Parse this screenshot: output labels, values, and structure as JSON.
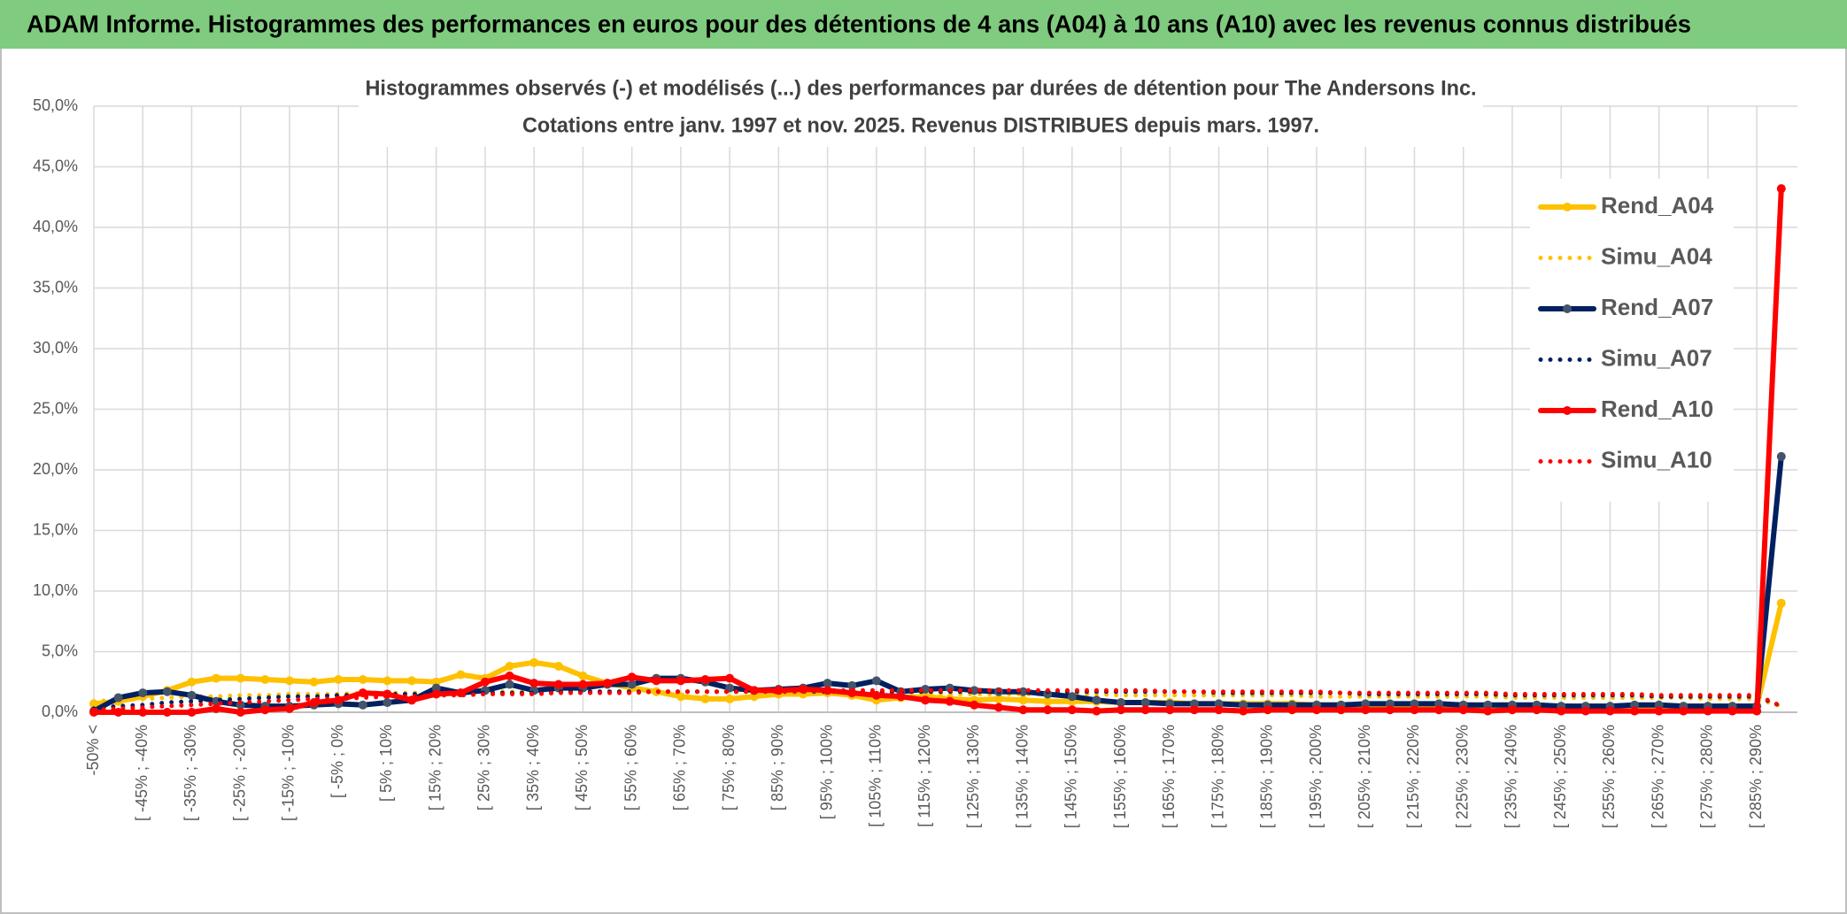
{
  "header": {
    "title": "ADAM Informe. Histogrammes des performances en euros pour des détentions de 4 ans (A04) à 10 ans (A10) avec les revenus connus distribués"
  },
  "chart_data": {
    "type": "line",
    "title": "Histogrammes observés (-) et modélisés (...) des performances par durées de détention pour The Andersons Inc.",
    "subtitle": "Cotations entre janv. 1997 et nov. 2025. Revenus DISTRIBUES depuis mars. 1997.",
    "categories": [
      "-50% <",
      null,
      "[ -45% ; -40%",
      null,
      "[ -35% ; -30%",
      null,
      "[ -25% ; -20%",
      null,
      "[ -15% ; -10%",
      null,
      "[ -5% ; 0%",
      null,
      "[ 5% ; 10%",
      null,
      "[ 15% ; 20%",
      null,
      "[ 25% ; 30%",
      null,
      "[ 35% ; 40%",
      null,
      "[ 45% ; 50%",
      null,
      "[ 55% ; 60%",
      null,
      "[ 65% ; 70%",
      null,
      "[ 75% ; 80%",
      null,
      "[ 85% ; 90%",
      null,
      "[ 95% ; 100%",
      null,
      "[ 105% ; 110%",
      null,
      "[ 115% ; 120%",
      null,
      "[ 125% ; 130%",
      null,
      "[ 135% ; 140%",
      null,
      "[ 145% ; 150%",
      null,
      "[ 155% ; 160%",
      null,
      "[ 165% ; 170%",
      null,
      "[ 175% ; 180%",
      null,
      "[ 185% ; 190%",
      null,
      "[ 195% ; 200%",
      null,
      "[ 205% ; 210%",
      null,
      "[ 215% ; 220%",
      null,
      "[ 225% ; 230%",
      null,
      "[ 235% ; 240%",
      null,
      "[ 245% ; 250%",
      null,
      "[ 255% ; 260%",
      null,
      "[ 265% ; 270%",
      null,
      "[ 275% ; 280%",
      null,
      "[ 285% ; 290%",
      null
    ],
    "series": [
      {
        "name": "Rend_A04",
        "color": "#ffc000",
        "style": "solid",
        "values": [
          0.7,
          0.9,
          1.3,
          1.8,
          2.5,
          2.8,
          2.8,
          2.7,
          2.6,
          2.5,
          2.7,
          2.7,
          2.6,
          2.6,
          2.5,
          3.1,
          2.8,
          3.8,
          4.1,
          3.8,
          3.0,
          2.4,
          2.0,
          1.7,
          1.3,
          1.1,
          1.1,
          1.3,
          1.5,
          1.5,
          1.6,
          1.4,
          1.0,
          1.2,
          1.3,
          1.1,
          1.0,
          1.1,
          1.0,
          0.9,
          0.9,
          0.9,
          0.8,
          0.8,
          0.8,
          0.7,
          0.7,
          0.7,
          0.7,
          0.7,
          0.6,
          0.6,
          0.6,
          0.6,
          0.6,
          0.6,
          0.6,
          0.5,
          0.5,
          0.5,
          0.5,
          0.5,
          0.5,
          0.5,
          0.5,
          0.5,
          0.5,
          0.5,
          0.5,
          9.0
        ]
      },
      {
        "name": "Simu_A04",
        "color": "#ffc000",
        "style": "dotted",
        "values": [
          0.9,
          1.0,
          1.1,
          1.2,
          1.3,
          1.3,
          1.4,
          1.4,
          1.5,
          1.5,
          1.5,
          1.6,
          1.6,
          1.6,
          1.6,
          1.7,
          1.7,
          1.7,
          1.7,
          1.7,
          1.7,
          1.7,
          1.7,
          1.7,
          1.7,
          1.7,
          1.7,
          1.7,
          1.6,
          1.6,
          1.6,
          1.6,
          1.6,
          1.6,
          1.6,
          1.5,
          1.5,
          1.5,
          1.5,
          1.5,
          1.5,
          1.5,
          1.4,
          1.4,
          1.4,
          1.4,
          1.4,
          1.4,
          1.4,
          1.4,
          1.3,
          1.3,
          1.3,
          1.3,
          1.3,
          1.3,
          1.3,
          1.3,
          1.2,
          1.2,
          1.2,
          1.2,
          1.2,
          1.2,
          1.2,
          1.2,
          1.1,
          1.1,
          1.1,
          0.5
        ]
      },
      {
        "name": "Rend_A07",
        "color": "#002060",
        "marker_color": "#44546a",
        "style": "solid",
        "values": [
          0.1,
          1.2,
          1.6,
          1.7,
          1.4,
          0.9,
          0.6,
          0.5,
          0.5,
          0.6,
          0.7,
          0.6,
          0.8,
          1.0,
          2.0,
          1.6,
          1.8,
          2.3,
          1.8,
          2.0,
          2.0,
          2.3,
          2.3,
          2.8,
          2.8,
          2.5,
          2.0,
          1.8,
          1.9,
          2.0,
          2.4,
          2.2,
          2.6,
          1.7,
          1.9,
          2.0,
          1.8,
          1.7,
          1.7,
          1.5,
          1.3,
          1.0,
          0.8,
          0.8,
          0.7,
          0.7,
          0.7,
          0.6,
          0.6,
          0.6,
          0.6,
          0.6,
          0.7,
          0.7,
          0.7,
          0.7,
          0.6,
          0.6,
          0.6,
          0.6,
          0.5,
          0.5,
          0.5,
          0.6,
          0.6,
          0.5,
          0.5,
          0.5,
          0.5,
          21.1
        ]
      },
      {
        "name": "Simu_A07",
        "color": "#002060",
        "style": "dotted",
        "values": [
          0.3,
          0.5,
          0.6,
          0.8,
          0.9,
          1.0,
          1.1,
          1.2,
          1.3,
          1.3,
          1.4,
          1.4,
          1.5,
          1.5,
          1.5,
          1.6,
          1.6,
          1.6,
          1.6,
          1.7,
          1.7,
          1.7,
          1.7,
          1.7,
          1.7,
          1.7,
          1.7,
          1.7,
          1.7,
          1.7,
          1.7,
          1.7,
          1.7,
          1.7,
          1.7,
          1.7,
          1.7,
          1.7,
          1.7,
          1.7,
          1.7,
          1.7,
          1.7,
          1.7,
          1.7,
          1.7,
          1.6,
          1.6,
          1.6,
          1.6,
          1.6,
          1.6,
          1.5,
          1.5,
          1.5,
          1.5,
          1.5,
          1.5,
          1.4,
          1.4,
          1.4,
          1.4,
          1.4,
          1.4,
          1.3,
          1.3,
          1.3,
          1.3,
          1.3,
          0.5
        ]
      },
      {
        "name": "Rend_A10",
        "color": "#ff0000",
        "style": "solid",
        "values": [
          0.0,
          0.0,
          0.0,
          0.0,
          0.0,
          0.3,
          0.0,
          0.2,
          0.3,
          0.8,
          1.0,
          1.6,
          1.5,
          1.0,
          1.5,
          1.6,
          2.5,
          3.0,
          2.4,
          2.3,
          2.3,
          2.4,
          2.9,
          2.6,
          2.6,
          2.7,
          2.8,
          1.8,
          1.8,
          1.9,
          1.8,
          1.6,
          1.4,
          1.3,
          1.0,
          0.9,
          0.6,
          0.4,
          0.2,
          0.2,
          0.2,
          0.1,
          0.2,
          0.2,
          0.2,
          0.2,
          0.2,
          0.1,
          0.2,
          0.2,
          0.2,
          0.2,
          0.2,
          0.2,
          0.2,
          0.2,
          0.2,
          0.1,
          0.2,
          0.2,
          0.1,
          0.1,
          0.1,
          0.1,
          0.1,
          0.1,
          0.1,
          0.1,
          0.1,
          43.2
        ]
      },
      {
        "name": "Simu_A10",
        "color": "#ff0000",
        "style": "dotted",
        "values": [
          0.2,
          0.3,
          0.4,
          0.5,
          0.6,
          0.7,
          0.8,
          0.9,
          1.0,
          1.1,
          1.1,
          1.2,
          1.3,
          1.3,
          1.4,
          1.4,
          1.5,
          1.5,
          1.5,
          1.6,
          1.6,
          1.6,
          1.6,
          1.7,
          1.7,
          1.7,
          1.7,
          1.7,
          1.7,
          1.7,
          1.8,
          1.8,
          1.8,
          1.8,
          1.8,
          1.8,
          1.8,
          1.8,
          1.8,
          1.8,
          1.8,
          1.8,
          1.8,
          1.8,
          1.7,
          1.7,
          1.7,
          1.7,
          1.7,
          1.7,
          1.7,
          1.6,
          1.6,
          1.6,
          1.6,
          1.6,
          1.6,
          1.6,
          1.5,
          1.5,
          1.5,
          1.5,
          1.5,
          1.5,
          1.4,
          1.4,
          1.4,
          1.4,
          1.4,
          0.5
        ]
      }
    ],
    "ylim": [
      0,
      50
    ],
    "yticks": [
      {
        "value": 0,
        "label": "0,0%"
      },
      {
        "value": 5,
        "label": "5,0%"
      },
      {
        "value": 10,
        "label": "10,0%"
      },
      {
        "value": 15,
        "label": "15,0%"
      },
      {
        "value": 20,
        "label": "20,0%"
      },
      {
        "value": 25,
        "label": "25,0%"
      },
      {
        "value": 30,
        "label": "30,0%"
      },
      {
        "value": 35,
        "label": "35,0%"
      },
      {
        "value": 40,
        "label": "40,0%"
      },
      {
        "value": 45,
        "label": "45,0%"
      },
      {
        "value": 50,
        "label": "50,0%"
      }
    ],
    "grid": true,
    "legend": "right"
  }
}
